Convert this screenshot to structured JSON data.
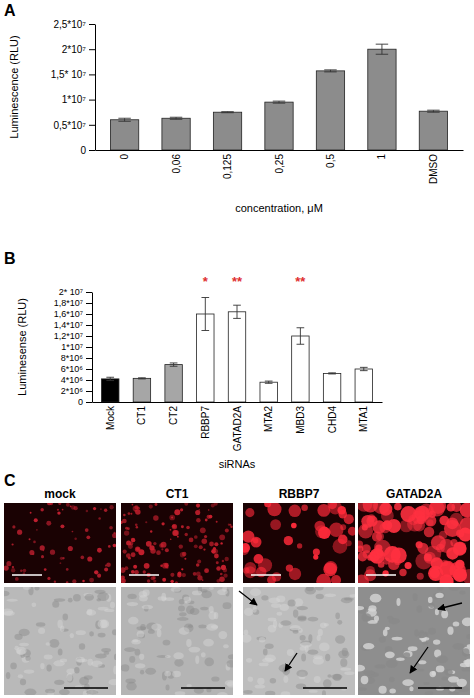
{
  "chart_data": [
    {
      "type": "bar",
      "y_label": "Luminescence (RLU)",
      "x_label": "concentration, μM",
      "categories": [
        "0",
        "0,06",
        "0,125",
        "0,25",
        "0,5",
        "1",
        "DMSO"
      ],
      "values": [
        6000000,
        6300000,
        7500000,
        9500000,
        15700000,
        20000000,
        7700000
      ],
      "errors": [
        300000,
        200000,
        100000,
        200000,
        200000,
        1000000,
        200000
      ],
      "color": "#8c8c8c",
      "ylim": [
        0,
        25000000
      ],
      "yticks": [
        0,
        {
          "value": 5000000,
          "label": "0,5*10⁷"
        },
        {
          "value": 10000000,
          "label": "1*10⁷"
        },
        {
          "value": 15000000,
          "label": "1,5* 10⁷"
        },
        {
          "value": 20000000,
          "label": "2*10⁷"
        },
        {
          "value": 25000000,
          "label": "2,5*10⁷"
        }
      ]
    },
    {
      "type": "bar",
      "y_label": "Luminesense (RLU)",
      "x_label": "siRNAs",
      "categories": [
        "Mock",
        "CT1",
        "CT2",
        "RBBP7",
        "GATAD2A",
        "MTA2",
        "MBD3",
        "CHD4",
        "MTA1"
      ],
      "values": [
        4200000,
        4300000,
        6800000,
        16000000,
        16400000,
        3600000,
        12000000,
        5200000,
        6000000
      ],
      "errors": [
        300000,
        100000,
        300000,
        3000000,
        1200000,
        200000,
        1500000,
        100000,
        300000
      ],
      "colors": [
        "#000000",
        "#a6a6a6",
        "#a6a6a6",
        "#ffffff",
        "#ffffff",
        "#ffffff",
        "#ffffff",
        "#ffffff",
        "#ffffff"
      ],
      "ylim": [
        0,
        20000000
      ],
      "yticks": [
        0,
        {
          "value": 2000000,
          "label": "2*10⁶"
        },
        {
          "value": 4000000,
          "label": "4*10⁶"
        },
        {
          "value": 6000000,
          "label": "6*10⁶"
        },
        {
          "value": 8000000,
          "label": "8*10⁶"
        },
        {
          "value": 10000000,
          "label": "1*10⁷"
        },
        {
          "value": 12000000,
          "label": "1,2*10⁷"
        },
        {
          "value": 14000000,
          "label": "1,4*10⁷"
        },
        {
          "value": 16000000,
          "label": "1,6*10⁷"
        },
        {
          "value": 18000000,
          "label": "1,8*10⁷"
        },
        {
          "value": 20000000,
          "label": "2* 10⁷"
        }
      ],
      "annotations": [
        {
          "text": "*",
          "category": 3
        },
        {
          "text": "**",
          "category": 4
        },
        {
          "text": "**",
          "category": 6
        }
      ]
    }
  ],
  "panel_labels": [
    "A",
    "B",
    "C"
  ],
  "images": {
    "columns": [
      "mock",
      "CT1",
      "RBBP7",
      "GATAD2A"
    ]
  }
}
